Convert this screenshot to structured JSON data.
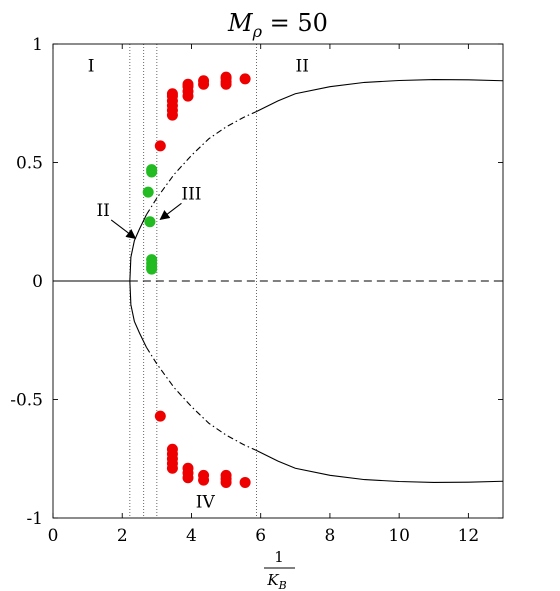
{
  "chart_data": {
    "type": "scatter",
    "title": "M_ρ = 50",
    "title_parts": {
      "base": "M",
      "sub": "ρ",
      "rest": " = 50"
    },
    "xlabel": {
      "numerator": "1",
      "denominator": "K",
      "denominator_sub": "B"
    },
    "ylabel": "",
    "xlim": [
      0,
      13
    ],
    "ylim": [
      -1,
      1
    ],
    "xticks": [
      0,
      2,
      4,
      6,
      8,
      10,
      12
    ],
    "yticks": [
      -1,
      -0.5,
      0,
      0.5,
      1
    ],
    "ytick_labels": [
      "-1",
      "-0.5",
      "0",
      "0.5",
      "1"
    ],
    "grid": false,
    "region_boundaries": [
      2.22,
      2.62,
      3.0,
      5.88
    ],
    "region_labels": [
      {
        "text": "I",
        "x": 1.1,
        "y": 0.91
      },
      {
        "text": "II",
        "x": 7.2,
        "y": 0.91
      },
      {
        "text": "IV",
        "x": 4.4,
        "y": -0.93
      }
    ],
    "annotations": [
      {
        "text": "II",
        "x": 1.45,
        "y": 0.3,
        "arrow_to": [
          2.38,
          0.18
        ]
      },
      {
        "text": "III",
        "x": 4.0,
        "y": 0.37,
        "arrow_to": [
          3.1,
          0.26
        ]
      }
    ],
    "curves": [
      {
        "name": "",
        "style": "solid",
        "color": "#000000",
        "points": [
          [
            0,
            0
          ],
          [
            2.22,
            0
          ]
        ]
      },
      {
        "name": "",
        "style": "dashed",
        "color": "#000000",
        "points": [
          [
            2.22,
            0
          ],
          [
            13,
            0
          ]
        ]
      },
      {
        "name": "",
        "style": "solid",
        "color": "#000000",
        "points": [
          [
            2.22,
            0
          ],
          [
            2.25,
            0.1
          ],
          [
            2.35,
            0.17
          ],
          [
            2.5,
            0.22
          ],
          [
            2.7,
            0.28
          ]
        ]
      },
      {
        "name": "",
        "style": "dashdot",
        "color": "#000000",
        "points": [
          [
            2.7,
            0.28
          ],
          [
            3.0,
            0.35
          ],
          [
            3.5,
            0.45
          ],
          [
            4.0,
            0.53
          ],
          [
            4.5,
            0.6
          ],
          [
            5.0,
            0.65
          ],
          [
            5.5,
            0.69
          ],
          [
            5.88,
            0.715
          ]
        ]
      },
      {
        "name": "",
        "style": "solid",
        "color": "#000000",
        "points": [
          [
            5.88,
            0.715
          ],
          [
            6.5,
            0.76
          ],
          [
            7.0,
            0.79
          ],
          [
            8.0,
            0.82
          ],
          [
            9.0,
            0.838
          ],
          [
            10.0,
            0.846
          ],
          [
            11.0,
            0.85
          ],
          [
            12.0,
            0.849
          ],
          [
            13.0,
            0.845
          ]
        ]
      },
      {
        "name": "",
        "style": "solid",
        "color": "#000000",
        "points": [
          [
            2.22,
            0
          ],
          [
            2.25,
            -0.1
          ],
          [
            2.35,
            -0.17
          ],
          [
            2.5,
            -0.22
          ],
          [
            2.7,
            -0.28
          ]
        ]
      },
      {
        "name": "",
        "style": "dashdot",
        "color": "#000000",
        "points": [
          [
            2.7,
            -0.28
          ],
          [
            3.0,
            -0.35
          ],
          [
            3.5,
            -0.45
          ],
          [
            4.0,
            -0.53
          ],
          [
            4.5,
            -0.6
          ],
          [
            5.0,
            -0.65
          ],
          [
            5.5,
            -0.69
          ],
          [
            5.88,
            -0.715
          ]
        ]
      },
      {
        "name": "",
        "style": "solid",
        "color": "#000000",
        "points": [
          [
            5.88,
            -0.715
          ],
          [
            6.5,
            -0.76
          ],
          [
            7.0,
            -0.79
          ],
          [
            8.0,
            -0.82
          ],
          [
            9.0,
            -0.838
          ],
          [
            10.0,
            -0.846
          ],
          [
            11.0,
            -0.85
          ],
          [
            12.0,
            -0.849
          ],
          [
            13.0,
            -0.845
          ]
        ]
      }
    ],
    "series": [
      {
        "name": "",
        "color": "#ee0000",
        "points": [
          [
            3.1,
            0.57
          ],
          [
            3.45,
            0.7
          ],
          [
            3.45,
            0.72
          ],
          [
            3.45,
            0.74
          ],
          [
            3.45,
            0.76
          ],
          [
            3.45,
            0.78
          ],
          [
            3.45,
            0.79
          ],
          [
            3.9,
            0.78
          ],
          [
            3.9,
            0.8
          ],
          [
            3.9,
            0.82
          ],
          [
            3.9,
            0.83
          ],
          [
            4.35,
            0.83
          ],
          [
            4.35,
            0.845
          ],
          [
            5.0,
            0.83
          ],
          [
            5.0,
            0.84
          ],
          [
            5.0,
            0.855
          ],
          [
            5.0,
            0.86
          ],
          [
            5.55,
            0.853
          ],
          [
            3.1,
            -0.57
          ],
          [
            3.45,
            -0.71
          ],
          [
            3.45,
            -0.73
          ],
          [
            3.45,
            -0.75
          ],
          [
            3.45,
            -0.77
          ],
          [
            3.45,
            -0.79
          ],
          [
            3.9,
            -0.79
          ],
          [
            3.9,
            -0.81
          ],
          [
            3.9,
            -0.83
          ],
          [
            4.35,
            -0.82
          ],
          [
            4.35,
            -0.84
          ],
          [
            5.0,
            -0.82
          ],
          [
            5.0,
            -0.835
          ],
          [
            5.0,
            -0.85
          ],
          [
            5.55,
            -0.85
          ]
        ]
      },
      {
        "name": "",
        "color": "#22bb22",
        "points": [
          [
            2.85,
            0.47
          ],
          [
            2.85,
            0.46
          ],
          [
            2.75,
            0.375
          ],
          [
            2.8,
            0.25
          ],
          [
            2.85,
            0.09
          ],
          [
            2.85,
            0.075
          ],
          [
            2.85,
            0.06
          ],
          [
            2.85,
            0.05
          ]
        ]
      }
    ]
  }
}
